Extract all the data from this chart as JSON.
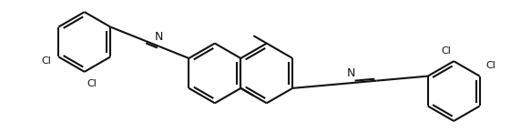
{
  "bg": "#ffffff",
  "lc": "#111111",
  "lw": 1.5,
  "dbo": 0.04,
  "fs": 8.0,
  "figsize": [
    5.83,
    1.45
  ],
  "dpi": 100,
  "xlim": [
    -0.3,
    10.7
  ],
  "ylim": [
    0.1,
    2.7
  ],
  "r": 0.37
}
